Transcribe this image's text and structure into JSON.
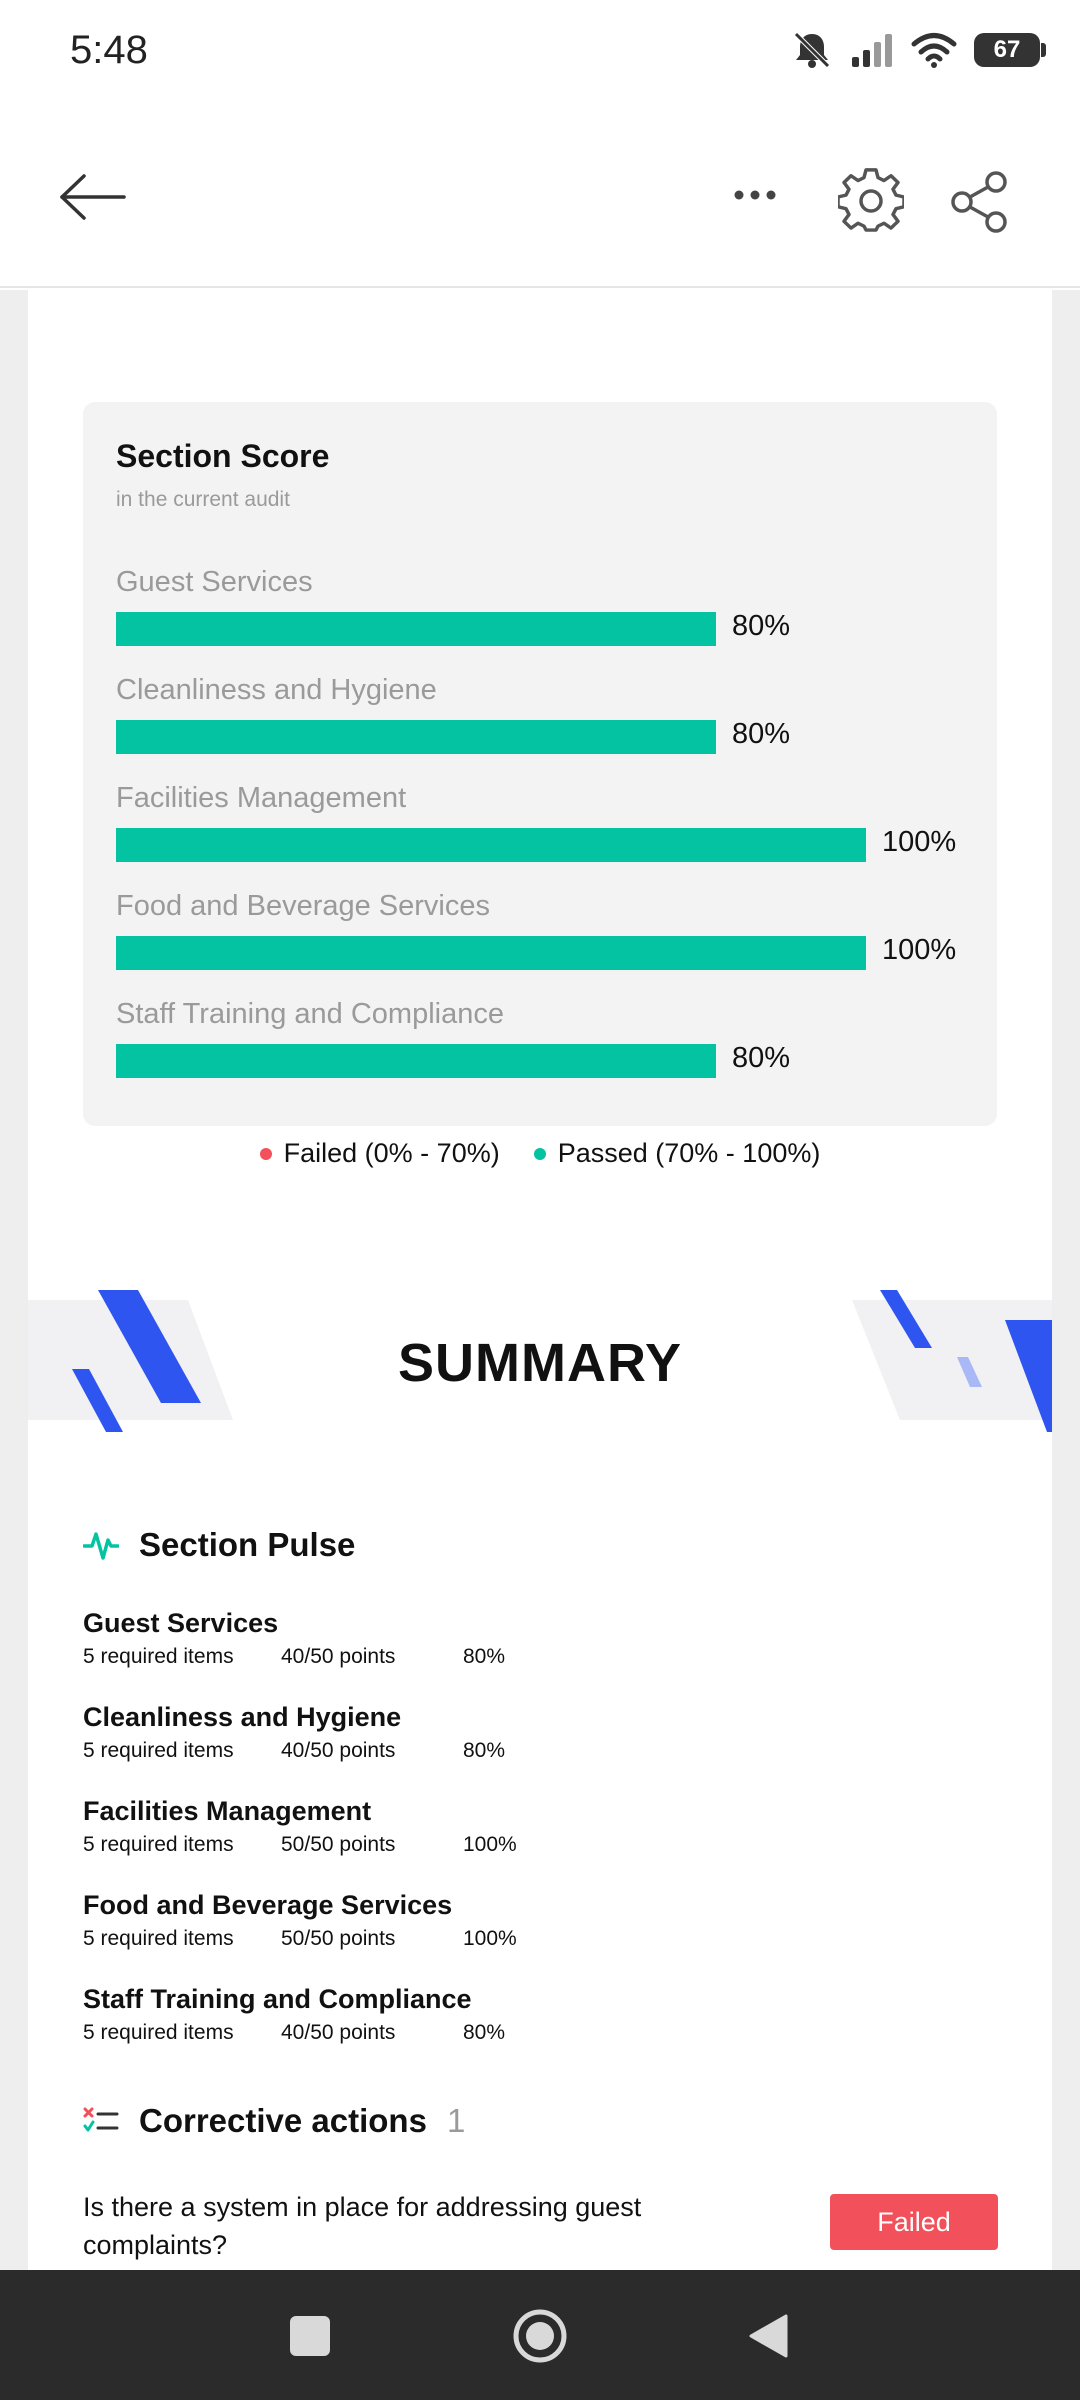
{
  "status_bar": {
    "time": "5:48",
    "battery": "67",
    "icons": [
      "mute-bell-icon",
      "signal-icon",
      "wifi-icon",
      "battery-icon"
    ]
  },
  "app_bar": {
    "icons": [
      "arrow-left-icon",
      "more-horizontal-icon",
      "gear-icon",
      "share-icon"
    ]
  },
  "section_score": {
    "title": "Section Score",
    "subtitle": "in the current audit",
    "max_value": 100,
    "bar_color": "#04c3a2",
    "items": [
      {
        "label": "Guest Services",
        "value": 80,
        "display": "80%"
      },
      {
        "label": "Cleanliness and Hygiene",
        "value": 80,
        "display": "80%"
      },
      {
        "label": "Facilities Management",
        "value": 100,
        "display": "100%"
      },
      {
        "label": "Food and Beverage Services",
        "value": 100,
        "display": "100%"
      },
      {
        "label": "Staff Training and Compliance",
        "value": 80,
        "display": "80%"
      }
    ],
    "legend": [
      {
        "label": "Failed (0% - 70%)",
        "color": "#f2505a"
      },
      {
        "label": "Passed (70% - 100%)",
        "color": "#04c3a2"
      }
    ]
  },
  "summary": {
    "title": "SUMMARY",
    "accent_color": "#2f55f0"
  },
  "section_pulse": {
    "title": "Section Pulse",
    "items": [
      {
        "name": "Guest Services",
        "required": "5 required items",
        "points": "40/50 points",
        "percent": "80%"
      },
      {
        "name": "Cleanliness and Hygiene",
        "required": "5 required items",
        "points": "40/50 points",
        "percent": "80%"
      },
      {
        "name": "Facilities Management",
        "required": "5 required items",
        "points": "50/50 points",
        "percent": "100%"
      },
      {
        "name": "Food and Beverage Services",
        "required": "5 required items",
        "points": "50/50 points",
        "percent": "100%"
      },
      {
        "name": "Staff Training and Compliance",
        "required": "5 required items",
        "points": "40/50 points",
        "percent": "80%"
      }
    ]
  },
  "corrective_actions": {
    "title": "Corrective actions",
    "count": "1",
    "items": [
      {
        "question": "Is there a system in place for addressing guest complaints?",
        "status": "Failed",
        "status_color": "#f2505a"
      }
    ]
  },
  "nav_bar": {
    "icons": [
      "recents-square-icon",
      "home-circle-icon",
      "back-triangle-icon"
    ]
  }
}
